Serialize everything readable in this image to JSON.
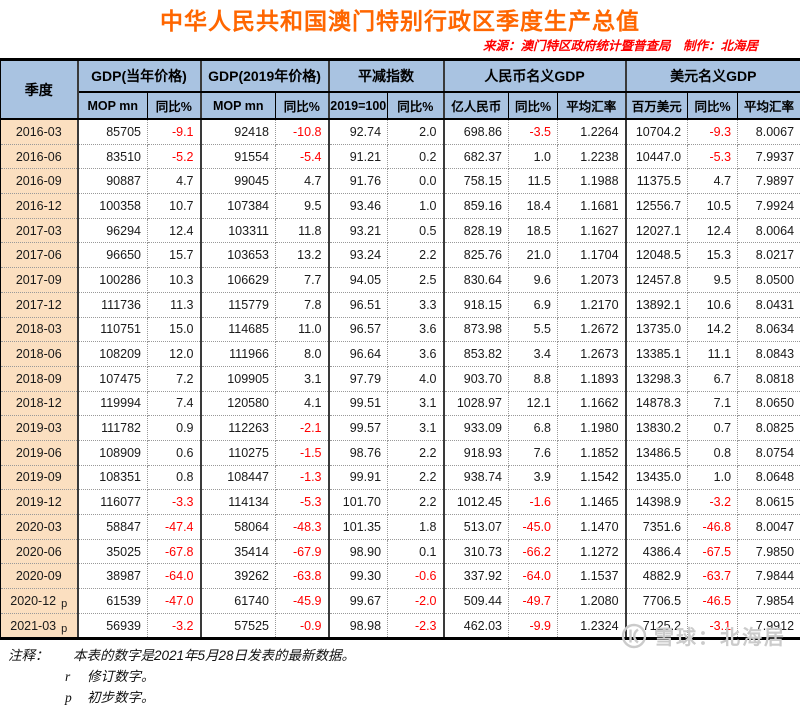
{
  "title": "中华人民共和国澳门特别行政区季度生产总值",
  "source": "来源：澳门特区政府统计暨普查局　制作：北海居",
  "colors": {
    "title_orange": "#ff6600",
    "source_red": "#ff0000",
    "negative_red": "#ff0000",
    "header_blue": "#a9c3e1",
    "quarter_peach": "#fbdfc0"
  },
  "chart_data": {
    "type": "table",
    "title": "中华人民共和国澳门特别行政区季度生产总值",
    "quarter_header": "季度",
    "groups": [
      {
        "label": "GDP(当年价格)",
        "span": 2
      },
      {
        "label": "GDP(2019年价格)",
        "span": 2
      },
      {
        "label": "平减指数",
        "span": 2
      },
      {
        "label": "人民币名义GDP",
        "span": 3
      },
      {
        "label": "美元名义GDP",
        "span": 3
      }
    ],
    "subs": [
      "MOP mn",
      "同比%",
      "MOP mn",
      "同比%",
      "2019=100",
      "同比%",
      "亿人民币",
      "同比%",
      "平均汇率",
      "百万美元",
      "同比%",
      "平均汇率"
    ],
    "rows": [
      {
        "quarter": "2016-03",
        "flag": "",
        "values": [
          "85705",
          "-9.1",
          "92418",
          "-10.8",
          "92.74",
          "2.0",
          "698.86",
          "-3.5",
          "1.2264",
          "10704.2",
          "-9.3",
          "8.0067"
        ]
      },
      {
        "quarter": "2016-06",
        "flag": "",
        "values": [
          "83510",
          "-5.2",
          "91554",
          "-5.4",
          "91.21",
          "0.2",
          "682.37",
          "1.0",
          "1.2238",
          "10447.0",
          "-5.3",
          "7.9937"
        ]
      },
      {
        "quarter": "2016-09",
        "flag": "",
        "values": [
          "90887",
          "4.7",
          "99045",
          "4.7",
          "91.76",
          "0.0",
          "758.15",
          "11.5",
          "1.1988",
          "11375.5",
          "4.7",
          "7.9897"
        ]
      },
      {
        "quarter": "2016-12",
        "flag": "",
        "values": [
          "100358",
          "10.7",
          "107384",
          "9.5",
          "93.46",
          "1.0",
          "859.16",
          "18.4",
          "1.1681",
          "12556.7",
          "10.5",
          "7.9924"
        ]
      },
      {
        "quarter": "2017-03",
        "flag": "",
        "values": [
          "96294",
          "12.4",
          "103311",
          "11.8",
          "93.21",
          "0.5",
          "828.19",
          "18.5",
          "1.1627",
          "12027.1",
          "12.4",
          "8.0064"
        ]
      },
      {
        "quarter": "2017-06",
        "flag": "",
        "values": [
          "96650",
          "15.7",
          "103653",
          "13.2",
          "93.24",
          "2.2",
          "825.76",
          "21.0",
          "1.1704",
          "12048.5",
          "15.3",
          "8.0217"
        ]
      },
      {
        "quarter": "2017-09",
        "flag": "",
        "values": [
          "100286",
          "10.3",
          "106629",
          "7.7",
          "94.05",
          "2.5",
          "830.64",
          "9.6",
          "1.2073",
          "12457.8",
          "9.5",
          "8.0500"
        ]
      },
      {
        "quarter": "2017-12",
        "flag": "",
        "values": [
          "111736",
          "11.3",
          "115779",
          "7.8",
          "96.51",
          "3.3",
          "918.15",
          "6.9",
          "1.2170",
          "13892.1",
          "10.6",
          "8.0431"
        ]
      },
      {
        "quarter": "2018-03",
        "flag": "",
        "values": [
          "110751",
          "15.0",
          "114685",
          "11.0",
          "96.57",
          "3.6",
          "873.98",
          "5.5",
          "1.2672",
          "13735.0",
          "14.2",
          "8.0634"
        ]
      },
      {
        "quarter": "2018-06",
        "flag": "",
        "values": [
          "108209",
          "12.0",
          "111966",
          "8.0",
          "96.64",
          "3.6",
          "853.82",
          "3.4",
          "1.2673",
          "13385.1",
          "11.1",
          "8.0843"
        ]
      },
      {
        "quarter": "2018-09",
        "flag": "",
        "values": [
          "107475",
          "7.2",
          "109905",
          "3.1",
          "97.79",
          "4.0",
          "903.70",
          "8.8",
          "1.1893",
          "13298.3",
          "6.7",
          "8.0818"
        ]
      },
      {
        "quarter": "2018-12",
        "flag": "",
        "values": [
          "119994",
          "7.4",
          "120580",
          "4.1",
          "99.51",
          "3.1",
          "1028.97",
          "12.1",
          "1.1662",
          "14878.3",
          "7.1",
          "8.0650"
        ]
      },
      {
        "quarter": "2019-03",
        "flag": "",
        "values": [
          "111782",
          "0.9",
          "112263",
          "-2.1",
          "99.57",
          "3.1",
          "933.09",
          "6.8",
          "1.1980",
          "13830.2",
          "0.7",
          "8.0825"
        ]
      },
      {
        "quarter": "2019-06",
        "flag": "",
        "values": [
          "108909",
          "0.6",
          "110275",
          "-1.5",
          "98.76",
          "2.2",
          "918.93",
          "7.6",
          "1.1852",
          "13486.5",
          "0.8",
          "8.0754"
        ]
      },
      {
        "quarter": "2019-09",
        "flag": "",
        "values": [
          "108351",
          "0.8",
          "108447",
          "-1.3",
          "99.91",
          "2.2",
          "938.74",
          "3.9",
          "1.1542",
          "13435.0",
          "1.0",
          "8.0648"
        ]
      },
      {
        "quarter": "2019-12",
        "flag": "",
        "values": [
          "116077",
          "-3.3",
          "114134",
          "-5.3",
          "101.70",
          "2.2",
          "1012.45",
          "-1.6",
          "1.1465",
          "14398.9",
          "-3.2",
          "8.0615"
        ]
      },
      {
        "quarter": "2020-03",
        "flag": "",
        "values": [
          "58847",
          "-47.4",
          "58064",
          "-48.3",
          "101.35",
          "1.8",
          "513.07",
          "-45.0",
          "1.1470",
          "7351.6",
          "-46.8",
          "8.0047"
        ]
      },
      {
        "quarter": "2020-06",
        "flag": "",
        "values": [
          "35025",
          "-67.8",
          "35414",
          "-67.9",
          "98.90",
          "0.1",
          "310.73",
          "-66.2",
          "1.1272",
          "4386.4",
          "-67.5",
          "7.9850"
        ]
      },
      {
        "quarter": "2020-09",
        "flag": "",
        "values": [
          "38987",
          "-64.0",
          "39262",
          "-63.8",
          "99.30",
          "-0.6",
          "337.92",
          "-64.0",
          "1.1537",
          "4882.9",
          "-63.7",
          "7.9844"
        ]
      },
      {
        "quarter": "2020-12",
        "flag": "p",
        "values": [
          "61539",
          "-47.0",
          "61740",
          "-45.9",
          "99.67",
          "-2.0",
          "509.44",
          "-49.7",
          "1.2080",
          "7706.5",
          "-46.5",
          "7.9854"
        ]
      },
      {
        "quarter": "2021-03",
        "flag": "p",
        "values": [
          "56939",
          "-3.2",
          "57525",
          "-0.9",
          "98.98",
          "-2.3",
          "462.03",
          "-9.9",
          "1.2324",
          "7125.2",
          "-3.1",
          "7.9912"
        ]
      }
    ]
  },
  "notes": {
    "label": "注释：",
    "line1": "本表的数字是2021年5月28日发表的最新数据。",
    "r_key": "r",
    "r_text": "修订数字。",
    "p_key": "p",
    "p_text": "初步数字。"
  },
  "watermark": {
    "text": "雪球：北海居"
  }
}
